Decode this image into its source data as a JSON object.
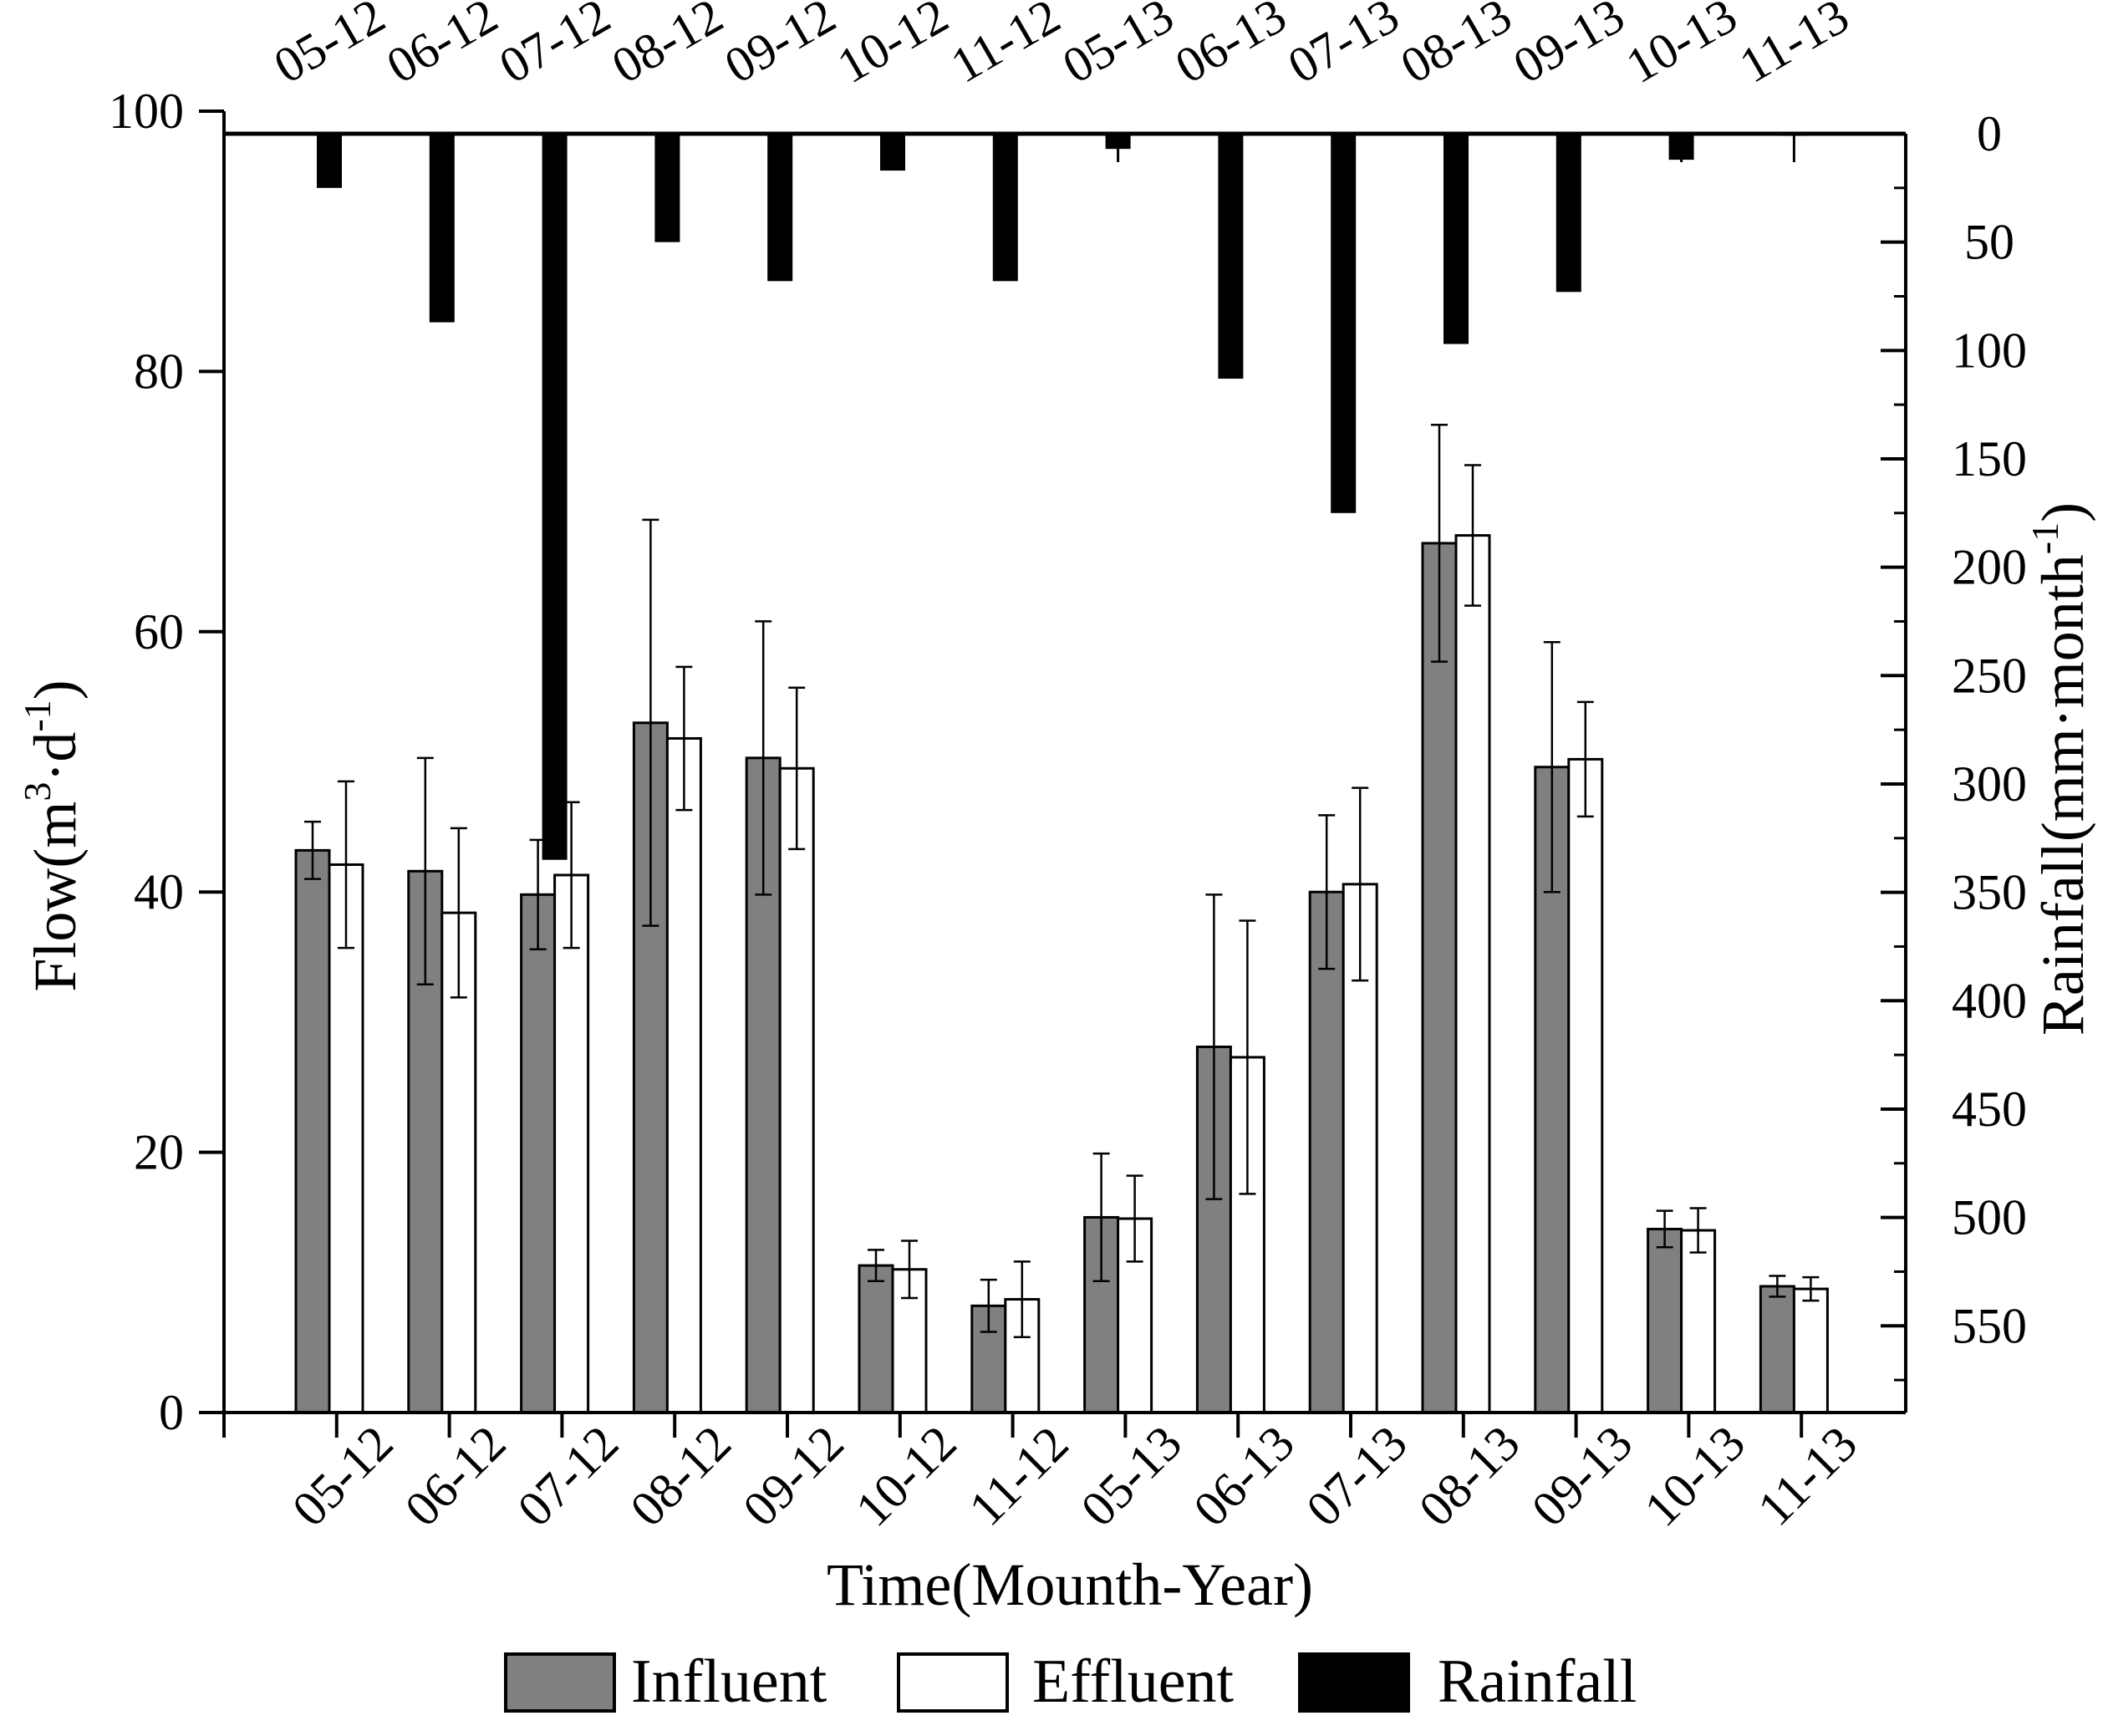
{
  "chart_data": {
    "type": "bar",
    "categories": [
      "05-12",
      "06-12",
      "07-12",
      "08-12",
      "09-12",
      "10-12",
      "11-12",
      "05-13",
      "06-13",
      "07-13",
      "08-13",
      "09-13",
      "10-13",
      "11-13"
    ],
    "series": [
      {
        "name": "Influent",
        "color": "#808080",
        "values": [
          43.2,
          41.6,
          39.8,
          53.0,
          50.3,
          11.3,
          8.2,
          15.0,
          28.1,
          40.0,
          66.8,
          49.6,
          14.1,
          9.7
        ],
        "errors": [
          2.2,
          8.7,
          4.2,
          15.6,
          10.5,
          1.2,
          2.0,
          4.9,
          11.7,
          5.9,
          9.1,
          9.6,
          1.4,
          0.8
        ]
      },
      {
        "name": "Effluent",
        "color": "#ffffff",
        "values": [
          42.1,
          38.4,
          41.3,
          51.8,
          49.5,
          11.0,
          8.7,
          14.9,
          27.3,
          40.6,
          67.4,
          50.2,
          14.0,
          9.5
        ],
        "errors": [
          6.4,
          6.5,
          5.6,
          5.5,
          6.2,
          2.2,
          2.9,
          3.3,
          10.5,
          7.4,
          5.4,
          4.4,
          1.7,
          0.9
        ]
      },
      {
        "name": "Rainfall",
        "color": "#000000",
        "values": [
          25,
          87,
          335,
          50,
          68,
          17,
          68,
          7,
          113,
          175,
          97,
          73,
          12,
          1
        ]
      }
    ],
    "title": "",
    "xlabel": "Time(Mounth-Year)",
    "ylabel": "Flow(m³·d⁻¹)",
    "y2label": "Rainfall(mm·month⁻¹)",
    "ylim": [
      0,
      100
    ],
    "yticks": [
      0,
      20,
      40,
      60,
      80,
      100
    ],
    "y2lim": [
      0,
      590
    ],
    "y2ticks": [
      0,
      50,
      100,
      150,
      200,
      250,
      300,
      350,
      400,
      450,
      500,
      550
    ],
    "y2_inverted": true,
    "grid": false,
    "legend_position": "bottom"
  }
}
